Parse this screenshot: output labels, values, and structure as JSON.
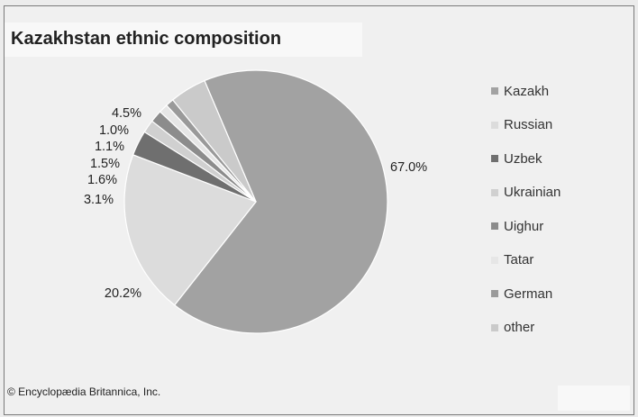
{
  "chart_data": {
    "type": "pie",
    "title": "Kazakhstan ethnic composition",
    "categories": [
      "Kazakh",
      "Russian",
      "Uzbek",
      "Ukrainian",
      "Uighur",
      "Tatar",
      "German",
      "other"
    ],
    "values": [
      67.0,
      20.2,
      3.1,
      1.6,
      1.5,
      1.1,
      1.0,
      4.5
    ],
    "value_labels": [
      "67.0%",
      "20.2%",
      "3.1%",
      "1.6%",
      "1.5%",
      "1.1%",
      "1.0%",
      "4.5%"
    ],
    "colors": [
      "#a2a2a2",
      "#dcdcdc",
      "#6f6f6f",
      "#d0d0d0",
      "#8c8c8c",
      "#e6e6e6",
      "#9a9a9a",
      "#cacaca"
    ],
    "legend_position": "right"
  },
  "credit": "© Encyclopædia Britannica, Inc."
}
